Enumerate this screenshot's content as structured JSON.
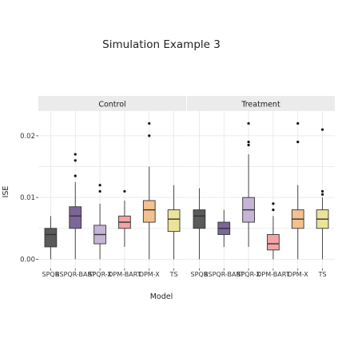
{
  "chart_data": {
    "type": "box",
    "title": "Simulation Example 3",
    "xlabel": "Model",
    "ylabel": "ISE",
    "ylim": [
      -0.0015,
      0.024
    ],
    "yticks": [
      0.0,
      0.01,
      0.02
    ],
    "ytick_labels": [
      "0.00",
      "0.01",
      "0.02"
    ],
    "grid": true,
    "legend": "none",
    "categories": [
      "SPQR",
      "BSPQR-BART",
      "SPQR-X",
      "DPM-BART",
      "DPM-X",
      "TS"
    ],
    "colors": [
      "#5a5a5a",
      "#7c6699",
      "#c5b4d6",
      "#f2a3a5",
      "#f3c18f",
      "#ece39b"
    ],
    "panels": [
      {
        "name": "Control",
        "boxes": [
          {
            "category": "SPQR",
            "whisker_low": 0.0,
            "q1": 0.002,
            "median": 0.004,
            "q3": 0.005,
            "whisker_high": 0.007,
            "outliers": []
          },
          {
            "category": "BSPQR-BART",
            "whisker_low": 0.0,
            "q1": 0.005,
            "median": 0.007,
            "q3": 0.0085,
            "whisker_high": 0.0125,
            "outliers": [
              0.0135,
              0.016,
              0.017
            ]
          },
          {
            "category": "SPQR-X",
            "whisker_low": 0.0,
            "q1": 0.0025,
            "median": 0.004,
            "q3": 0.0055,
            "whisker_high": 0.009,
            "outliers": [
              0.011,
              0.012
            ]
          },
          {
            "category": "DPM-BART",
            "whisker_low": 0.002,
            "q1": 0.005,
            "median": 0.006,
            "q3": 0.007,
            "whisker_high": 0.0095,
            "outliers": [
              0.011
            ]
          },
          {
            "category": "DPM-X",
            "whisker_low": 0.0,
            "q1": 0.006,
            "median": 0.008,
            "q3": 0.0095,
            "whisker_high": 0.015,
            "outliers": [
              0.02,
              0.022
            ]
          },
          {
            "category": "TS",
            "whisker_low": 0.0,
            "q1": 0.0045,
            "median": 0.0065,
            "q3": 0.008,
            "whisker_high": 0.012,
            "outliers": []
          }
        ]
      },
      {
        "name": "Treatment",
        "boxes": [
          {
            "category": "SPQR",
            "whisker_low": 0.0,
            "q1": 0.005,
            "median": 0.007,
            "q3": 0.008,
            "whisker_high": 0.0115,
            "outliers": []
          },
          {
            "category": "BSPQR-BART",
            "whisker_low": 0.002,
            "q1": 0.004,
            "median": 0.005,
            "q3": 0.006,
            "whisker_high": 0.008,
            "outliers": []
          },
          {
            "category": "SPQR-X",
            "whisker_low": 0.002,
            "q1": 0.006,
            "median": 0.008,
            "q3": 0.01,
            "whisker_high": 0.017,
            "outliers": [
              0.0185,
              0.019,
              0.022
            ]
          },
          {
            "category": "DPM-BART",
            "whisker_low": 0.0,
            "q1": 0.0015,
            "median": 0.0025,
            "q3": 0.004,
            "whisker_high": 0.007,
            "outliers": [
              0.008,
              0.009
            ]
          },
          {
            "category": "DPM-X",
            "whisker_low": 0.0,
            "q1": 0.005,
            "median": 0.0065,
            "q3": 0.008,
            "whisker_high": 0.012,
            "outliers": [
              0.019,
              0.022
            ]
          },
          {
            "category": "TS",
            "whisker_low": 0.0,
            "q1": 0.005,
            "median": 0.0065,
            "q3": 0.008,
            "whisker_high": 0.01,
            "outliers": [
              0.0105,
              0.011,
              0.021
            ]
          }
        ]
      }
    ]
  }
}
